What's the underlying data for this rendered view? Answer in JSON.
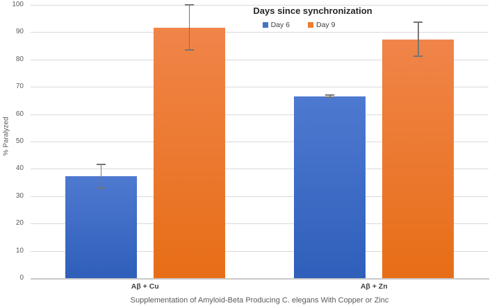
{
  "chart_data": {
    "type": "bar",
    "title": "Supplementation of Amyloid-Beta Producing C. elegans With Copper or Zinc",
    "legend_title": "Days since synchronization",
    "legend_position": "top",
    "xlabel": "",
    "ylabel": "% Paralyzed",
    "categories": [
      "Aβ + Cu",
      "Aβ + Zn"
    ],
    "series": [
      {
        "name": "Day 6",
        "color": "#4472C4",
        "gradient_top": "#4E79D0",
        "gradient_bottom": "#2F5FBA",
        "values": [
          37.3,
          66.6
        ],
        "errors": [
          4.3,
          0.4
        ]
      },
      {
        "name": "Day 9",
        "color": "#ED7D31",
        "gradient_top": "#F08449",
        "gradient_bottom": "#E76E17",
        "values": [
          91.7,
          87.4
        ],
        "errors": [
          8.3,
          6.2
        ]
      }
    ],
    "ylim": [
      0,
      100
    ],
    "ytick_step": 10,
    "yticks": [
      0,
      10,
      20,
      30,
      40,
      50,
      60,
      70,
      80,
      90,
      100
    ],
    "grid": true
  },
  "colors": {
    "background": "#FFFFFF",
    "gridline": "#D9D9D9",
    "axis_line": "#C9C9C9",
    "tick_text": "#595959",
    "category_text": "#404040",
    "title_text": "#595959",
    "legend_title_text": "#262626",
    "error_bar": "#757575"
  }
}
